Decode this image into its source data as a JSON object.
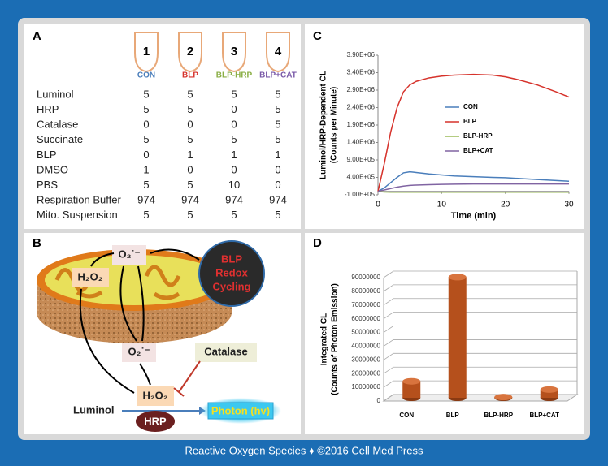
{
  "panels": {
    "a": "A",
    "b": "B",
    "c": "C",
    "d": "D"
  },
  "table": {
    "tubes": [
      1,
      2,
      3,
      4
    ],
    "groups": [
      "CON",
      "BLP",
      "BLP-HRP",
      "BLP+CAT"
    ],
    "colors": [
      "#4a7ebb",
      "#d6322b",
      "#8aae44",
      "#7a5aa8"
    ],
    "rows": [
      [
        "Luminol",
        5,
        5,
        5,
        5
      ],
      [
        "HRP",
        5,
        5,
        0,
        5
      ],
      [
        "Catalase",
        0,
        0,
        0,
        5
      ],
      [
        "Succinate",
        5,
        5,
        5,
        5
      ],
      [
        "BLP",
        0,
        1,
        1,
        1
      ],
      [
        "DMSO",
        1,
        0,
        0,
        0
      ],
      [
        "PBS",
        5,
        5,
        10,
        0
      ],
      [
        "Respiration Buffer",
        974,
        974,
        974,
        974
      ],
      [
        "Mito. Suspension",
        5,
        5,
        5,
        5
      ]
    ]
  },
  "diagram": {
    "o2_top": "O₂˙⁻",
    "h2o2_left": "H₂O₂",
    "blp": [
      "BLP",
      "Redox",
      "Cycling"
    ],
    "o2_mid": "O₂˙⁻",
    "catalase": "Catalase",
    "h2o2_bottom": "H₂O₂",
    "luminol": "Luminol",
    "hrp": "HRP",
    "photon": "Photon (hv)"
  },
  "chart_data": [
    {
      "type": "line",
      "ylabel": [
        "Luminol/HRP-Dependent CL",
        "(Counts per Minute)"
      ],
      "xlabel": "Time (min)",
      "x": [
        0,
        1,
        2,
        3,
        4,
        5,
        6,
        8,
        10,
        12,
        15,
        18,
        20,
        22,
        25,
        28,
        30
      ],
      "series": [
        {
          "name": "CON",
          "color": "#4a7ebb",
          "values": [
            0,
            100000,
            250000,
            400000,
            530000,
            560000,
            540000,
            500000,
            470000,
            440000,
            420000,
            400000,
            390000,
            370000,
            340000,
            310000,
            290000
          ]
        },
        {
          "name": "BLP",
          "color": "#d6322b",
          "values": [
            0,
            800000,
            1700000,
            2400000,
            2850000,
            3050000,
            3150000,
            3250000,
            3300000,
            3330000,
            3350000,
            3330000,
            3280000,
            3200000,
            3050000,
            2850000,
            2700000
          ]
        },
        {
          "name": "BLP-HRP",
          "color": "#9bbb59",
          "values": [
            0,
            -20000,
            -25000,
            -25000,
            -25000,
            -25000,
            -25000,
            -25000,
            -25000,
            -25000,
            -25000,
            -25000,
            -25000,
            -25000,
            -25000,
            -25000,
            -25000
          ]
        },
        {
          "name": "BLP+CAT",
          "color": "#8064a2",
          "values": [
            0,
            40000,
            80000,
            120000,
            150000,
            170000,
            180000,
            190000,
            200000,
            205000,
            210000,
            210000,
            210000,
            210000,
            210000,
            210000,
            210000
          ]
        }
      ],
      "xlim": [
        0,
        30
      ],
      "xticks": [
        0,
        10,
        20,
        30
      ],
      "ylim": [
        -100000,
        3900000
      ],
      "yticks": [
        {
          "value": -100000,
          "label": "-1.00E+05"
        },
        {
          "value": 400000,
          "label": "4.00E+05"
        },
        {
          "value": 900000,
          "label": "9.00E+05"
        },
        {
          "value": 1400000,
          "label": "1.40E+06"
        },
        {
          "value": 1900000,
          "label": "1.90E+06"
        },
        {
          "value": 2400000,
          "label": "2.40E+06"
        },
        {
          "value": 2900000,
          "label": "2.90E+06"
        },
        {
          "value": 3400000,
          "label": "3.40E+06"
        },
        {
          "value": 3900000,
          "label": "3.90E+06"
        }
      ]
    },
    {
      "type": "bar",
      "ylabel": [
        "Integrated CL",
        "(Counts of Photon Emission)"
      ],
      "categories": [
        "CON",
        "BLP",
        "BLP-HRP",
        "BLP+CAT"
      ],
      "values": [
        12000000,
        88000000,
        500000,
        6000000
      ],
      "color": "#b5501c",
      "ylim": [
        0,
        90000000
      ],
      "yticks": [
        0,
        10000000,
        20000000,
        30000000,
        40000000,
        50000000,
        60000000,
        70000000,
        80000000,
        90000000
      ],
      "grid": true
    }
  ],
  "footer": "Reactive Oxygen Species ♦ ©2016 Cell Med Press"
}
